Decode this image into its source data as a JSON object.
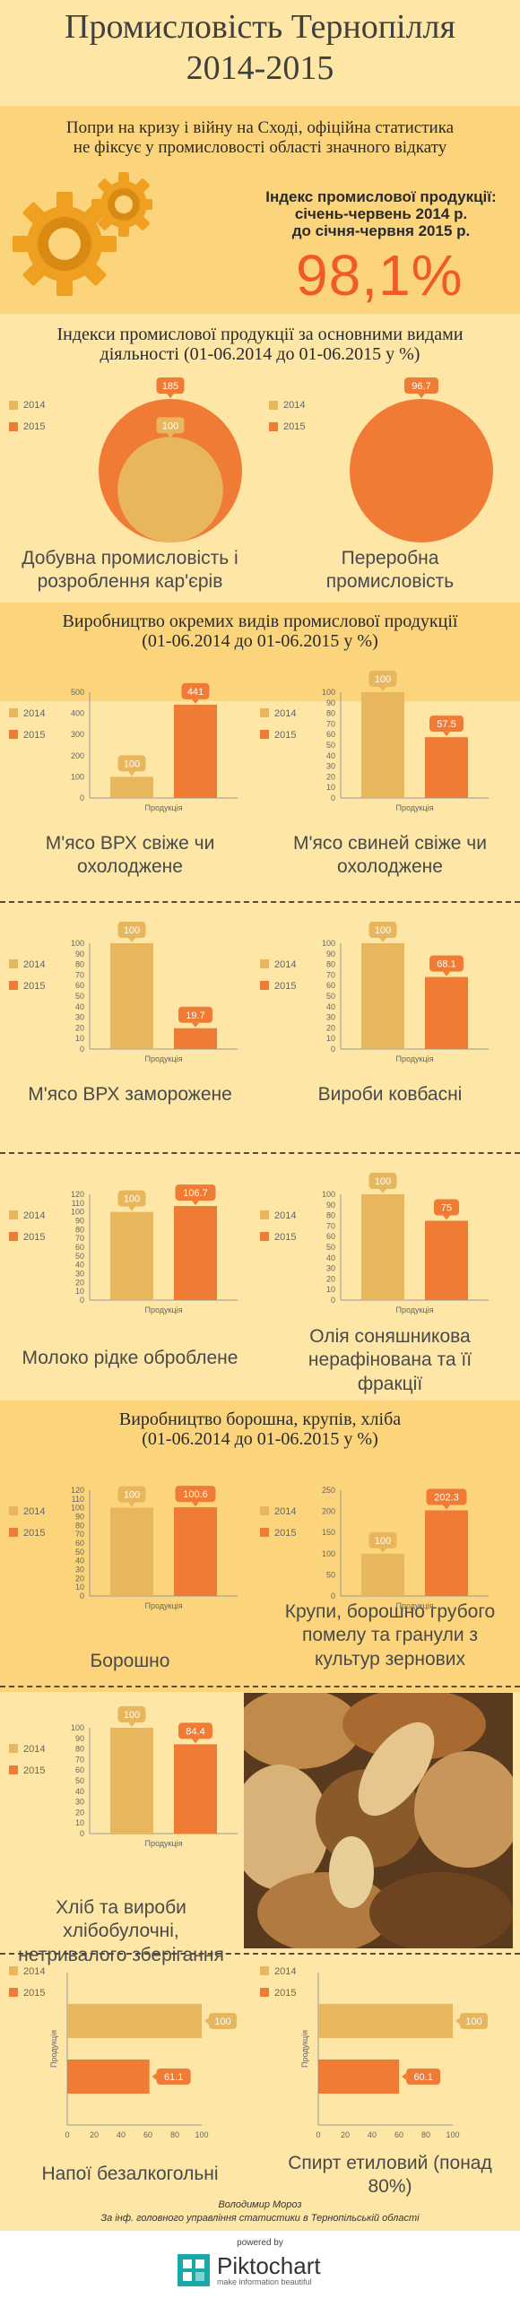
{
  "header": {
    "title": "Промисловість Тернопілля",
    "years": "2014-2015"
  },
  "intro": {
    "line1": "Попри на кризу і війну на Сході, офіційна статистика",
    "line2": "не фіксує у промисловості області значного відкату",
    "index_label1": "Індекс промислової продукції:",
    "index_label2": "січень-червень 2014 р.",
    "index_label3": "до січня-червня 2015 р.",
    "index_value": "98,1%"
  },
  "colors": {
    "c2014": "#e8b65c",
    "c2015": "#f07b35",
    "band": "#fcd47c",
    "bg": "#fde6a6"
  },
  "legend": {
    "l2014": "2014",
    "l2015": "2015"
  },
  "xlabel": "Продукція",
  "sections": {
    "s1_line1": "Індекси промислової продукції за основними видами",
    "s1_line2": "діяльності (01-06.2014 до 01-06.2015 у %)",
    "s2_line1": "Виробництво окремих видів промислової продукції",
    "s2_line2": "(01-06.2014 до 01-06.2015 у %)",
    "s3_line1": "Виробництво борошна, крупів, хліба",
    "s3_line2": "(01-06.2014 до 01-06.2015 у %)"
  },
  "captions": {
    "c1a": "Добувна промисловість і",
    "c1b": "розроблення кар'єрів",
    "c2a": "Переробна",
    "c2b": "промисловість",
    "c3a": "М'ясо ВРХ свіже чи",
    "c3b": "охолоджене",
    "c4a": "М'ясо свиней свіже чи",
    "c4b": "охолоджене",
    "c5": "М'ясо ВРХ заморожене",
    "c6": "Вироби ковбасні",
    "c7": "Молоко рідке оброблене",
    "c8a": "Олія соняшникова",
    "c8b": "нерафінована та її",
    "c8c": "фракції",
    "c9": "Борошно",
    "c10a": "Крупи, борошно грубого",
    "c10b": "помелу та гранули з",
    "c10c": "культур зернових",
    "c11a": "Хліб та вироби",
    "c11b": "хлібобулочні,",
    "c11c": "нетривалого зберігання",
    "c12": "Напої безалкогольні",
    "c13a": "Спирт етиловий (понад",
    "c13b": "80%)"
  },
  "footer": {
    "author": "Володимир Мороз",
    "source": "За інф. головного управління статистики в Тернопільській області",
    "powered": "powered by",
    "brand": "Piktochart",
    "tagline": "make information beautiful"
  },
  "chart_data": [
    {
      "id": "mining",
      "type": "pie",
      "series": [
        {
          "name": "2014",
          "value": 100
        },
        {
          "name": "2015",
          "value": 185
        }
      ]
    },
    {
      "id": "processing",
      "type": "pie",
      "series": [
        {
          "name": "2015",
          "value": 96.7
        }
      ]
    },
    {
      "id": "beef_fresh",
      "type": "bar",
      "categories": [
        "Продукція"
      ],
      "series": [
        {
          "name": "2014",
          "values": [
            100
          ]
        },
        {
          "name": "2015",
          "values": [
            441
          ]
        }
      ],
      "ylim": [
        0,
        500
      ],
      "yticks": [
        0,
        100,
        200,
        300,
        400,
        500
      ]
    },
    {
      "id": "pork_fresh",
      "type": "bar",
      "categories": [
        "Продукція"
      ],
      "series": [
        {
          "name": "2014",
          "values": [
            100
          ]
        },
        {
          "name": "2015",
          "values": [
            57.5
          ]
        }
      ],
      "ylim": [
        0,
        100
      ],
      "yticks": [
        0,
        10,
        20,
        30,
        40,
        50,
        60,
        70,
        80,
        90,
        100
      ]
    },
    {
      "id": "beef_frozen",
      "type": "bar",
      "categories": [
        "Продукція"
      ],
      "series": [
        {
          "name": "2014",
          "values": [
            100
          ]
        },
        {
          "name": "2015",
          "values": [
            19.7
          ]
        }
      ],
      "ylim": [
        0,
        100
      ],
      "yticks": [
        0,
        10,
        20,
        30,
        40,
        50,
        60,
        70,
        80,
        90,
        100
      ]
    },
    {
      "id": "sausages",
      "type": "bar",
      "categories": [
        "Продукція"
      ],
      "series": [
        {
          "name": "2014",
          "values": [
            100
          ]
        },
        {
          "name": "2015",
          "values": [
            68.1
          ]
        }
      ],
      "ylim": [
        0,
        100
      ],
      "yticks": [
        0,
        10,
        20,
        30,
        40,
        50,
        60,
        70,
        80,
        90,
        100
      ]
    },
    {
      "id": "milk",
      "type": "bar",
      "categories": [
        "Продукція"
      ],
      "series": [
        {
          "name": "2014",
          "values": [
            100
          ]
        },
        {
          "name": "2015",
          "values": [
            106.7
          ]
        }
      ],
      "ylim": [
        0,
        120
      ],
      "yticks": [
        0,
        10,
        20,
        30,
        40,
        50,
        60,
        70,
        80,
        90,
        100,
        110,
        120
      ]
    },
    {
      "id": "oil",
      "type": "bar",
      "categories": [
        "Продукція"
      ],
      "series": [
        {
          "name": "2014",
          "values": [
            100
          ]
        },
        {
          "name": "2015",
          "values": [
            75
          ]
        }
      ],
      "ylim": [
        0,
        100
      ],
      "yticks": [
        0,
        10,
        20,
        30,
        40,
        50,
        60,
        70,
        80,
        90,
        100
      ]
    },
    {
      "id": "flour",
      "type": "bar",
      "categories": [
        "Продукція"
      ],
      "series": [
        {
          "name": "2014",
          "values": [
            100
          ]
        },
        {
          "name": "2015",
          "values": [
            100.6
          ]
        }
      ],
      "ylim": [
        0,
        120
      ],
      "yticks": [
        0,
        10,
        20,
        30,
        40,
        50,
        60,
        70,
        80,
        90,
        100,
        110,
        120
      ]
    },
    {
      "id": "groats",
      "type": "bar",
      "categories": [
        "Продукція"
      ],
      "series": [
        {
          "name": "2014",
          "values": [
            100
          ]
        },
        {
          "name": "2015",
          "values": [
            202.3
          ]
        }
      ],
      "ylim": [
        0,
        250
      ],
      "yticks": [
        0,
        50,
        100,
        150,
        200,
        250
      ]
    },
    {
      "id": "bread",
      "type": "bar",
      "categories": [
        "Продукція"
      ],
      "series": [
        {
          "name": "2014",
          "values": [
            100
          ]
        },
        {
          "name": "2015",
          "values": [
            84.4
          ]
        }
      ],
      "ylim": [
        0,
        100
      ],
      "yticks": [
        0,
        10,
        20,
        30,
        40,
        50,
        60,
        70,
        80,
        90,
        100
      ]
    },
    {
      "id": "soft_drinks",
      "type": "hbar",
      "categories": [
        "Продукція"
      ],
      "series": [
        {
          "name": "2014",
          "values": [
            100
          ]
        },
        {
          "name": "2015",
          "values": [
            61.1
          ]
        }
      ],
      "xlim": [
        0,
        100
      ],
      "xticks": [
        0,
        20,
        40,
        60,
        80,
        100
      ]
    },
    {
      "id": "ethanol",
      "type": "hbar",
      "categories": [
        "Продукція"
      ],
      "series": [
        {
          "name": "2014",
          "values": [
            100
          ]
        },
        {
          "name": "2015",
          "values": [
            60.1
          ]
        }
      ],
      "xlim": [
        0,
        100
      ],
      "xticks": [
        0,
        20,
        40,
        60,
        80,
        100
      ]
    }
  ]
}
